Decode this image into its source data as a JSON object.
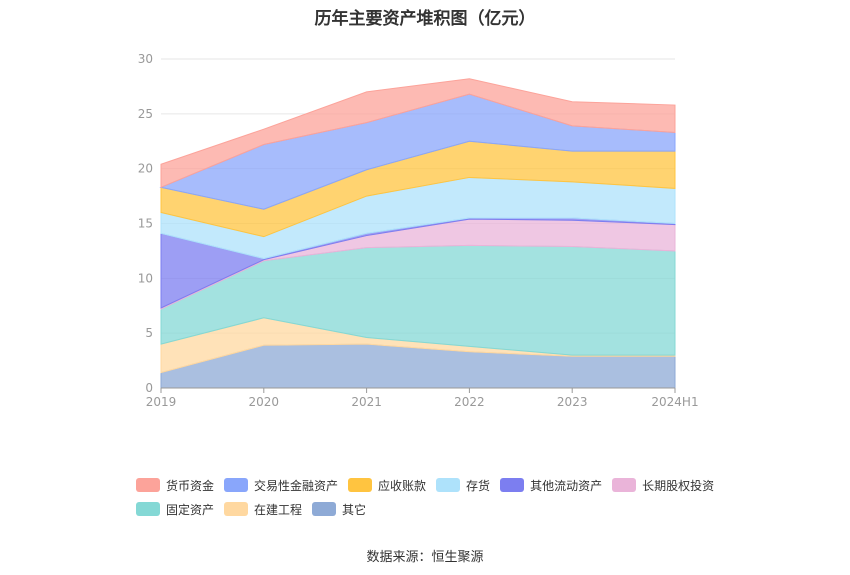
{
  "chart_data": {
    "type": "area",
    "stacked": true,
    "title": "历年主要资产堆积图（亿元）",
    "categories": [
      "2019",
      "2020",
      "2021",
      "2022",
      "2023",
      "2024H1"
    ],
    "y_ticks": [
      "0",
      "5",
      "10",
      "15",
      "20",
      "25",
      "30"
    ],
    "ylim": [
      0,
      30
    ],
    "grid": true,
    "legend_position": "bottom",
    "series": [
      {
        "name": "其它",
        "color": "#8eaad6",
        "values": [
          1.4,
          3.9,
          4.0,
          3.3,
          2.9,
          2.9
        ]
      },
      {
        "name": "在建工程",
        "color": "#ffd8a0",
        "values": [
          2.6,
          2.5,
          0.6,
          0.5,
          0.1,
          0.1
        ]
      },
      {
        "name": "固定资产",
        "color": "#84d8d5",
        "values": [
          3.2,
          5.2,
          8.2,
          9.2,
          9.9,
          9.5
        ]
      },
      {
        "name": "长期股权投资",
        "color": "#eab4d9",
        "values": [
          0.1,
          0.1,
          1.1,
          2.4,
          2.4,
          2.4
        ]
      },
      {
        "name": "其他流动资产",
        "color": "#7c7ef0",
        "values": [
          6.8,
          0.1,
          0.2,
          0.1,
          0.2,
          0.1
        ]
      },
      {
        "name": "存货",
        "color": "#aee2fb",
        "values": [
          1.9,
          2.0,
          3.4,
          3.7,
          3.3,
          3.2
        ]
      },
      {
        "name": "应收账款",
        "color": "#ffc440",
        "values": [
          2.3,
          2.5,
          2.4,
          3.3,
          2.8,
          3.4
        ]
      },
      {
        "name": "交易性金融资产",
        "color": "#89a6fb",
        "values": [
          0.0,
          5.9,
          4.3,
          4.3,
          2.3,
          1.7
        ]
      },
      {
        "name": "货币资金",
        "color": "#fca39a",
        "values": [
          2.1,
          1.4,
          2.8,
          1.4,
          2.2,
          2.5
        ]
      }
    ]
  },
  "legend": {
    "rows": [
      [
        "货币资金",
        "交易性金融资产",
        "应收账款",
        "存货",
        "其他流动资产",
        "长期股权投资"
      ],
      [
        "固定资产",
        "在建工程",
        "其它"
      ]
    ]
  },
  "source": "数据来源：恒生聚源"
}
